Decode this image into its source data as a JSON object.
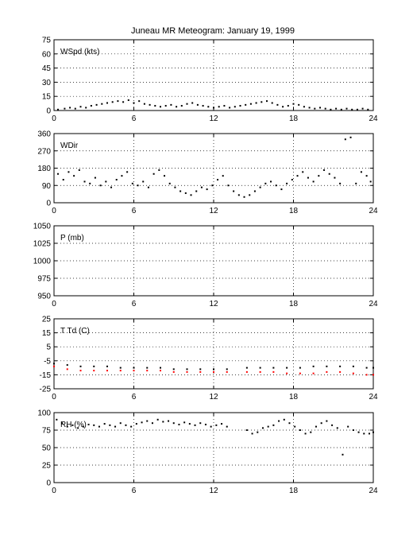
{
  "chart_data": {
    "type": "scatter",
    "title": "Juneau MR Meteogram:   January 19, 1999",
    "x_ticks": [
      0,
      6,
      12,
      18,
      24
    ],
    "xlim": [
      0,
      24
    ],
    "grid": true,
    "panels": [
      {
        "label": "WSpd (kts)",
        "ylim": [
          0,
          75
        ],
        "yticks": [
          0,
          15,
          30,
          45,
          60,
          75
        ],
        "series": [
          {
            "color": "#000000",
            "points": [
              [
                0.3,
                1
              ],
              [
                0.8,
                2
              ],
              [
                1.2,
                3
              ],
              [
                1.6,
                2
              ],
              [
                2.0,
                4
              ],
              [
                2.4,
                3
              ],
              [
                2.8,
                5
              ],
              [
                3.2,
                6
              ],
              [
                3.6,
                7
              ],
              [
                4.0,
                8
              ],
              [
                4.4,
                9
              ],
              [
                4.8,
                10
              ],
              [
                5.2,
                9
              ],
              [
                5.6,
                11
              ],
              [
                6.0,
                8
              ],
              [
                6.4,
                10
              ],
              [
                6.8,
                7
              ],
              [
                7.2,
                6
              ],
              [
                7.6,
                5
              ],
              [
                8.0,
                4
              ],
              [
                8.4,
                5
              ],
              [
                8.8,
                6
              ],
              [
                9.2,
                4
              ],
              [
                9.6,
                5
              ],
              [
                10.0,
                7
              ],
              [
                10.4,
                8
              ],
              [
                10.8,
                6
              ],
              [
                11.2,
                5
              ],
              [
                11.6,
                4
              ],
              [
                12.0,
                3
              ],
              [
                12.4,
                4
              ],
              [
                12.8,
                5
              ],
              [
                13.2,
                3
              ],
              [
                13.6,
                4
              ],
              [
                14.0,
                5
              ],
              [
                14.4,
                6
              ],
              [
                14.8,
                7
              ],
              [
                15.2,
                8
              ],
              [
                15.6,
                9
              ],
              [
                16.0,
                10
              ],
              [
                16.4,
                8
              ],
              [
                16.8,
                6
              ],
              [
                17.2,
                4
              ],
              [
                17.6,
                5
              ],
              [
                18.0,
                7
              ],
              [
                18.4,
                6
              ],
              [
                18.8,
                4
              ],
              [
                19.2,
                3
              ],
              [
                19.6,
                2
              ],
              [
                20.0,
                3
              ],
              [
                20.4,
                2
              ],
              [
                20.8,
                1
              ],
              [
                21.2,
                2
              ],
              [
                21.6,
                1
              ],
              [
                22.0,
                2
              ],
              [
                22.4,
                1
              ],
              [
                22.8,
                1
              ],
              [
                23.2,
                2
              ],
              [
                23.6,
                1
              ]
            ]
          }
        ]
      },
      {
        "label": "WDir",
        "ylim": [
          0,
          360
        ],
        "yticks": [
          0,
          90,
          180,
          270,
          360
        ],
        "series": [
          {
            "color": "#000000",
            "points": [
              [
                0.3,
                150
              ],
              [
                0.7,
                120
              ],
              [
                1.1,
                160
              ],
              [
                1.5,
                140
              ],
              [
                1.9,
                170
              ],
              [
                2.3,
                110
              ],
              [
                2.7,
                100
              ],
              [
                3.1,
                130
              ],
              [
                3.5,
                90
              ],
              [
                3.9,
                110
              ],
              [
                4.3,
                80
              ],
              [
                4.7,
                120
              ],
              [
                5.1,
                140
              ],
              [
                5.5,
                160
              ],
              [
                5.9,
                100
              ],
              [
                6.3,
                90
              ],
              [
                6.7,
                110
              ],
              [
                7.1,
                80
              ],
              [
                7.5,
                150
              ],
              [
                7.9,
                170
              ],
              [
                8.3,
                140
              ],
              [
                8.7,
                100
              ],
              [
                9.1,
                80
              ],
              [
                9.5,
                60
              ],
              [
                9.9,
                50
              ],
              [
                10.3,
                40
              ],
              [
                10.7,
                60
              ],
              [
                11.1,
                80
              ],
              [
                11.5,
                70
              ],
              [
                11.9,
                90
              ],
              [
                12.3,
                120
              ],
              [
                12.7,
                140
              ],
              [
                13.1,
                90
              ],
              [
                13.5,
                60
              ],
              [
                13.9,
                40
              ],
              [
                14.3,
                30
              ],
              [
                14.7,
                40
              ],
              [
                15.1,
                60
              ],
              [
                15.5,
                80
              ],
              [
                15.9,
                100
              ],
              [
                16.3,
                110
              ],
              [
                16.7,
                90
              ],
              [
                17.1,
                70
              ],
              [
                17.5,
                100
              ],
              [
                17.9,
                120
              ],
              [
                18.3,
                140
              ],
              [
                18.7,
                160
              ],
              [
                19.1,
                130
              ],
              [
                19.5,
                110
              ],
              [
                19.9,
                140
              ],
              [
                20.3,
                170
              ],
              [
                20.7,
                150
              ],
              [
                21.1,
                130
              ],
              [
                21.5,
                100
              ],
              [
                21.9,
                330
              ],
              [
                22.3,
                340
              ],
              [
                22.7,
                100
              ],
              [
                23.1,
                160
              ],
              [
                23.5,
                140
              ],
              [
                23.8,
                110
              ]
            ]
          }
        ]
      },
      {
        "label": "P (mb)",
        "ylim": [
          950,
          1050
        ],
        "yticks": [
          950,
          975,
          1000,
          1025,
          1050
        ],
        "series": []
      },
      {
        "label": "T Td (C)",
        "ylim": [
          -25,
          25
        ],
        "yticks": [
          -25,
          -15,
          -5,
          5,
          15,
          25
        ],
        "series": [
          {
            "color": "#000000",
            "points": [
              [
                0.0,
                -7
              ],
              [
                1.0,
                -8
              ],
              [
                2.0,
                -9
              ],
              [
                3.0,
                -9
              ],
              [
                4.0,
                -9
              ],
              [
                5.0,
                -10
              ],
              [
                6.0,
                -10
              ],
              [
                7.0,
                -10
              ],
              [
                8.0,
                -10
              ],
              [
                9.0,
                -11
              ],
              [
                10.0,
                -11
              ],
              [
                11.0,
                -11
              ],
              [
                12.0,
                -11
              ],
              [
                13.0,
                -11
              ],
              [
                14.5,
                -10
              ],
              [
                15.5,
                -10
              ],
              [
                16.5,
                -10
              ],
              [
                17.5,
                -10
              ],
              [
                18.5,
                -10
              ],
              [
                19.5,
                -9
              ],
              [
                20.5,
                -9
              ],
              [
                21.5,
                -9
              ],
              [
                22.5,
                -9
              ],
              [
                23.5,
                -10
              ],
              [
                24.0,
                -10
              ]
            ]
          },
          {
            "color": "#ff0000",
            "points": [
              [
                0.0,
                -9
              ],
              [
                1.0,
                -11
              ],
              [
                2.0,
                -12
              ],
              [
                3.0,
                -12
              ],
              [
                4.0,
                -12
              ],
              [
                5.0,
                -12
              ],
              [
                6.0,
                -12
              ],
              [
                7.0,
                -12
              ],
              [
                8.0,
                -12
              ],
              [
                9.0,
                -13
              ],
              [
                10.0,
                -13
              ],
              [
                11.0,
                -13
              ],
              [
                12.0,
                -13
              ],
              [
                13.0,
                -13
              ],
              [
                14.5,
                -13
              ],
              [
                15.5,
                -13
              ],
              [
                16.5,
                -13
              ],
              [
                17.5,
                -14
              ],
              [
                18.5,
                -14
              ],
              [
                19.5,
                -14
              ],
              [
                20.5,
                -13
              ],
              [
                21.5,
                -13
              ],
              [
                22.5,
                -14
              ],
              [
                23.5,
                -15
              ],
              [
                24.0,
                -15
              ]
            ]
          }
        ]
      },
      {
        "label": "RH (%)",
        "ylim": [
          0,
          100
        ],
        "yticks": [
          0,
          25,
          50,
          75,
          100
        ],
        "series": [
          {
            "color": "#000000",
            "points": [
              [
                0.2,
                90
              ],
              [
                0.6,
                85
              ],
              [
                1.0,
                80
              ],
              [
                1.4,
                82
              ],
              [
                1.8,
                78
              ],
              [
                2.2,
                80
              ],
              [
                2.6,
                83
              ],
              [
                3.0,
                82
              ],
              [
                3.4,
                80
              ],
              [
                3.8,
                84
              ],
              [
                4.2,
                82
              ],
              [
                4.6,
                80
              ],
              [
                5.0,
                85
              ],
              [
                5.4,
                82
              ],
              [
                5.8,
                80
              ],
              [
                6.2,
                84
              ],
              [
                6.6,
                86
              ],
              [
                7.0,
                88
              ],
              [
                7.4,
                85
              ],
              [
                7.8,
                90
              ],
              [
                8.2,
                87
              ],
              [
                8.6,
                88
              ],
              [
                9.0,
                85
              ],
              [
                9.4,
                83
              ],
              [
                9.8,
                86
              ],
              [
                10.2,
                84
              ],
              [
                10.6,
                82
              ],
              [
                11.0,
                85
              ],
              [
                11.4,
                83
              ],
              [
                11.8,
                80
              ],
              [
                12.2,
                82
              ],
              [
                12.6,
                84
              ],
              [
                13.0,
                80
              ],
              [
                14.5,
                75
              ],
              [
                14.9,
                70
              ],
              [
                15.3,
                72
              ],
              [
                15.7,
                78
              ],
              [
                16.1,
                80
              ],
              [
                16.5,
                82
              ],
              [
                16.9,
                88
              ],
              [
                17.3,
                90
              ],
              [
                17.7,
                85
              ],
              [
                18.1,
                80
              ],
              [
                18.5,
                75
              ],
              [
                18.9,
                70
              ],
              [
                19.3,
                72
              ],
              [
                19.7,
                80
              ],
              [
                20.1,
                85
              ],
              [
                20.5,
                88
              ],
              [
                20.9,
                82
              ],
              [
                21.3,
                78
              ],
              [
                21.7,
                40
              ],
              [
                22.1,
                80
              ],
              [
                22.5,
                75
              ],
              [
                22.9,
                72
              ],
              [
                23.3,
                70
              ],
              [
                23.7,
                70
              ],
              [
                24.0,
                72
              ]
            ]
          }
        ]
      }
    ]
  }
}
